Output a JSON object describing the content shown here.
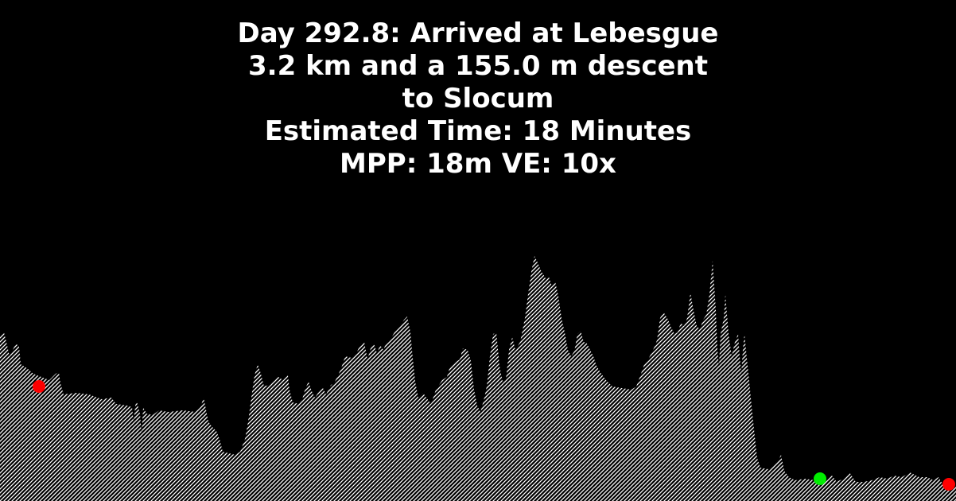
{
  "header": {
    "lines": [
      "Day 292.8: Arrived at Lebesgue",
      "3.2 km and a 155.0 m descent",
      "to Slocum",
      "Estimated Time: 18 Minutes",
      "MPP: 18m VE: 10x"
    ]
  },
  "colors": {
    "background": "#000000",
    "text": "#ffffff",
    "terrain_hatch": "#ffffff",
    "marker_start": "#ff0000",
    "marker_current": "#00ee00",
    "marker_end": "#ff0000"
  },
  "markers": [
    {
      "name": "start-marker",
      "color": "#ff0000"
    },
    {
      "name": "current-position-marker",
      "color": "#00ee00"
    },
    {
      "name": "end-marker",
      "color": "#ff0000"
    }
  ]
}
